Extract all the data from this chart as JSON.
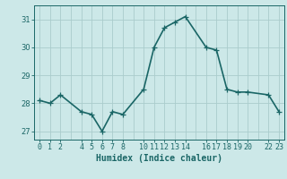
{
  "xlabel": "Humidex (Indice chaleur)",
  "background_color": "#cce8e8",
  "grid_color": "#aacccc",
  "line_color": "#1a6666",
  "hours": [
    0,
    1,
    2,
    4,
    5,
    6,
    7,
    8,
    10,
    11,
    12,
    13,
    14,
    16,
    17,
    18,
    19,
    20,
    22,
    23
  ],
  "humidex": [
    28.1,
    28.0,
    28.3,
    27.7,
    27.6,
    27.0,
    27.7,
    27.6,
    28.5,
    30.0,
    30.7,
    30.9,
    31.1,
    30.0,
    29.9,
    28.5,
    28.4,
    28.4,
    28.3,
    27.7
  ],
  "ylim": [
    26.7,
    31.5
  ],
  "xlim": [
    -0.5,
    23.5
  ],
  "yticks": [
    27,
    28,
    29,
    30,
    31
  ],
  "xtick_positions": [
    0,
    1,
    2,
    4,
    5,
    6,
    7,
    8,
    10,
    11,
    12,
    13,
    14,
    16,
    17,
    18,
    19,
    20,
    22,
    23
  ],
  "xtick_labels": [
    "0",
    "1",
    "2",
    "4",
    "5",
    "6",
    "7",
    "8",
    "10",
    "11",
    "12",
    "13",
    "14",
    "16",
    "17",
    "18",
    "19",
    "20",
    "22",
    "23"
  ],
  "marker_size": 4,
  "line_width": 1.2,
  "tick_fontsize": 6,
  "xlabel_fontsize": 7
}
